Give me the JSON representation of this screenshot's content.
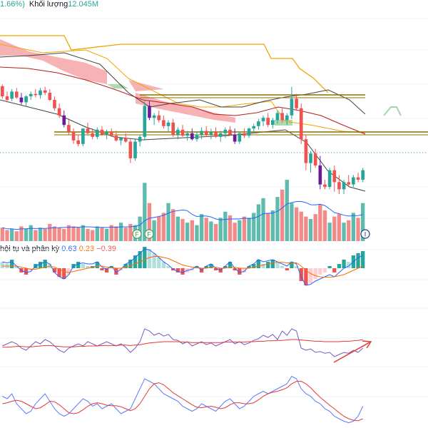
{
  "header": {
    "change_text": "1.66%)",
    "volume_label": "Khối lượng",
    "volume_value": "12.045M"
  },
  "macd_panel": {
    "title": "hội tụ và phân kỳ",
    "values": [
      "0.63",
      "0.23",
      "−0.39"
    ]
  },
  "markers": {
    "f1": "F",
    "f2": "F",
    "i": "I"
  },
  "colors": {
    "up": "#26a69a",
    "down": "#ef5350",
    "volume_up": "#5dbcae",
    "volume_down": "#f18a88",
    "kumo": "#f6a5a8",
    "kumo_green": "#a5d6a7",
    "macd_line": "#2962ff",
    "signal": "#ff6d00",
    "rsi": "#7e57c2",
    "stoch_blue": "#5b7bff",
    "stoch_red": "#e53935",
    "lagging": "#f0a500",
    "hline": "#8d6e00"
  },
  "chart_data": [
    {
      "type": "candlestick",
      "title": "",
      "ylim": [
        0,
        1
      ],
      "candles": [
        [
          0.905,
          0.92,
          0.8,
          0.82
        ],
        [
          0.82,
          0.86,
          0.77,
          0.79
        ],
        [
          0.8,
          0.88,
          0.78,
          0.86
        ],
        [
          0.86,
          0.89,
          0.8,
          0.81
        ],
        [
          0.81,
          0.85,
          0.75,
          0.77
        ],
        [
          0.77,
          0.83,
          0.74,
          0.82
        ],
        [
          0.82,
          0.86,
          0.79,
          0.84
        ],
        [
          0.84,
          0.88,
          0.81,
          0.83
        ],
        [
          0.83,
          0.89,
          0.8,
          0.87
        ],
        [
          0.87,
          0.9,
          0.83,
          0.85
        ],
        [
          0.85,
          0.88,
          0.78,
          0.79
        ],
        [
          0.79,
          0.82,
          0.7,
          0.72
        ],
        [
          0.72,
          0.76,
          0.64,
          0.66
        ],
        [
          0.66,
          0.7,
          0.56,
          0.58
        ],
        [
          0.58,
          0.62,
          0.5,
          0.52
        ],
        [
          0.52,
          0.55,
          0.42,
          0.45
        ],
        [
          0.45,
          0.5,
          0.4,
          0.42
        ],
        [
          0.42,
          0.55,
          0.4,
          0.55
        ],
        [
          0.55,
          0.6,
          0.5,
          0.51
        ],
        [
          0.51,
          0.55,
          0.46,
          0.48
        ],
        [
          0.48,
          0.56,
          0.46,
          0.54
        ],
        [
          0.54,
          0.57,
          0.49,
          0.5
        ],
        [
          0.5,
          0.54,
          0.46,
          0.52
        ],
        [
          0.52,
          0.55,
          0.48,
          0.49
        ],
        [
          0.49,
          0.53,
          0.44,
          0.45
        ],
        [
          0.45,
          0.48,
          0.41,
          0.47
        ],
        [
          0.47,
          0.51,
          0.43,
          0.44
        ],
        [
          0.44,
          0.46,
          0.26,
          0.3
        ],
        [
          0.3,
          0.46,
          0.28,
          0.44
        ],
        [
          0.44,
          0.5,
          0.4,
          0.48
        ],
        [
          0.48,
          0.78,
          0.45,
          0.74
        ],
        [
          0.74,
          0.78,
          0.62,
          0.64
        ],
        [
          0.64,
          0.68,
          0.58,
          0.66
        ],
        [
          0.66,
          0.7,
          0.6,
          0.62
        ],
        [
          0.62,
          0.66,
          0.55,
          0.57
        ],
        [
          0.57,
          0.62,
          0.52,
          0.6
        ],
        [
          0.6,
          0.63,
          0.48,
          0.5
        ],
        [
          0.5,
          0.56,
          0.46,
          0.54
        ],
        [
          0.54,
          0.58,
          0.48,
          0.49
        ],
        [
          0.49,
          0.53,
          0.45,
          0.51
        ],
        [
          0.51,
          0.55,
          0.45,
          0.46
        ],
        [
          0.46,
          0.52,
          0.44,
          0.5
        ],
        [
          0.5,
          0.56,
          0.46,
          0.53
        ],
        [
          0.53,
          0.57,
          0.48,
          0.5
        ],
        [
          0.5,
          0.55,
          0.46,
          0.52
        ],
        [
          0.52,
          0.56,
          0.47,
          0.48
        ],
        [
          0.48,
          0.53,
          0.44,
          0.51
        ],
        [
          0.51,
          0.56,
          0.47,
          0.54
        ],
        [
          0.54,
          0.57,
          0.49,
          0.5
        ],
        [
          0.5,
          0.55,
          0.42,
          0.44
        ],
        [
          0.44,
          0.52,
          0.42,
          0.51
        ],
        [
          0.51,
          0.55,
          0.47,
          0.49
        ],
        [
          0.49,
          0.56,
          0.47,
          0.55
        ],
        [
          0.55,
          0.59,
          0.51,
          0.57
        ],
        [
          0.57,
          0.63,
          0.54,
          0.61
        ],
        [
          0.61,
          0.66,
          0.57,
          0.64
        ],
        [
          0.64,
          0.68,
          0.56,
          0.58
        ],
        [
          0.58,
          0.64,
          0.55,
          0.62
        ],
        [
          0.62,
          0.7,
          0.59,
          0.68
        ],
        [
          0.68,
          0.72,
          0.6,
          0.62
        ],
        [
          0.62,
          0.68,
          0.58,
          0.66
        ],
        [
          0.66,
          0.9,
          0.63,
          0.8
        ],
        [
          0.8,
          0.84,
          0.7,
          0.72
        ],
        [
          0.72,
          0.76,
          0.42,
          0.46
        ],
        [
          0.46,
          0.5,
          0.2,
          0.26
        ],
        [
          0.26,
          0.36,
          0.18,
          0.34
        ],
        [
          0.34,
          0.38,
          0.22,
          0.24
        ],
        [
          0.24,
          0.32,
          0.04,
          0.08
        ],
        [
          0.08,
          0.12,
          0.04,
          0.06
        ],
        [
          0.06,
          0.22,
          0.04,
          0.2
        ],
        [
          0.2,
          0.24,
          0.02,
          0.1
        ],
        [
          0.1,
          0.16,
          0.0,
          0.04
        ],
        [
          0.04,
          0.12,
          0.0,
          0.1
        ],
        [
          0.1,
          0.16,
          0.06,
          0.08
        ],
        [
          0.08,
          0.16,
          0.06,
          0.14
        ],
        [
          0.14,
          0.18,
          0.1,
          0.12
        ],
        [
          0.12,
          0.22,
          0.1,
          0.2
        ]
      ],
      "volumes": [
        0.22,
        0.18,
        0.2,
        0.16,
        0.24,
        0.2,
        0.26,
        0.18,
        0.22,
        0.2,
        0.28,
        0.24,
        0.22,
        0.2,
        0.26,
        0.24,
        0.22,
        0.26,
        0.2,
        0.18,
        0.24,
        0.22,
        0.2,
        0.26,
        0.24,
        0.3,
        0.22,
        0.28,
        0.26,
        0.4,
        0.95,
        0.62,
        0.34,
        0.4,
        0.46,
        0.62,
        0.52,
        0.4,
        0.36,
        0.3,
        0.34,
        0.26,
        0.44,
        0.38,
        0.32,
        0.28,
        0.38,
        0.48,
        0.42,
        0.3,
        0.34,
        0.4,
        0.38,
        0.46,
        0.6,
        0.7,
        0.46,
        0.5,
        0.72,
        0.84,
        1.0,
        0.62,
        0.55,
        0.48,
        0.4,
        0.36,
        0.44,
        0.6,
        0.5,
        0.3,
        0.4,
        0.44,
        0.3,
        0.34,
        0.46,
        0.38,
        0.62
      ],
      "macd_hist": [
        0.3,
        0.2,
        0.4,
        0.1,
        -0.2,
        -0.3,
        -0.1,
        0.2,
        0.3,
        0.4,
        0.2,
        -0.2,
        -0.4,
        -0.5,
        -0.3,
        0.2,
        0.3,
        0.2,
        0.1,
        0.1,
        0.3,
        -0.1,
        -0.2,
        0.1,
        -0.3,
        -0.1,
        0.2,
        0.4,
        0.6,
        0.8,
        1.0,
        0.9,
        0.7,
        0.5,
        0.3,
        0.1,
        -0.1,
        -0.2,
        -0.3,
        -0.2,
        -0.1,
        0.1,
        -0.2,
        0.1,
        0.2,
        -0.1,
        -0.2,
        0.1,
        0.3,
        -0.1,
        -0.3,
        -0.2,
        0.1,
        0.2,
        0.4,
        0.2,
        0.3,
        0.4,
        0.3,
        0.1,
        -0.1,
        0.3,
        0.1,
        -0.6,
        -0.8,
        -0.7,
        -0.5,
        -0.3,
        -0.2,
        0.1,
        -0.2,
        0.2,
        0.4,
        0.3,
        0.6,
        0.7,
        0.8
      ],
      "macd_line": [
        0.3,
        0.25,
        0.3,
        0.1,
        -0.1,
        -0.2,
        -0.15,
        0.1,
        0.2,
        0.3,
        0.2,
        -0.2,
        -0.4,
        -0.5,
        -0.3,
        0.1,
        0.2,
        0.25,
        0.2,
        0.2,
        0.3,
        0.05,
        -0.05,
        0.1,
        -0.2,
        -0.05,
        0.2,
        0.3,
        0.5,
        0.7,
        0.9,
        0.85,
        0.7,
        0.5,
        0.3,
        0.15,
        -0.05,
        -0.15,
        -0.2,
        -0.1,
        -0.05,
        0.1,
        -0.1,
        0.1,
        0.2,
        0.0,
        -0.1,
        0.1,
        0.3,
        0.0,
        -0.2,
        -0.15,
        0.1,
        0.2,
        0.4,
        0.3,
        0.35,
        0.4,
        0.3,
        0.2,
        0.1,
        0.3,
        0.2,
        -0.4,
        -0.8,
        -0.75,
        -0.6,
        -0.5,
        -0.4,
        -0.3,
        -0.4,
        -0.2,
        0.0,
        0.1,
        0.3,
        0.5,
        0.6
      ],
      "macd_signal": [
        0.1,
        0.1,
        0.1,
        0.1,
        0.05,
        0.0,
        -0.05,
        -0.05,
        0.0,
        0.05,
        0.1,
        0.05,
        -0.05,
        -0.15,
        -0.2,
        -0.15,
        -0.1,
        -0.05,
        0.0,
        0.05,
        0.1,
        0.1,
        0.05,
        0.05,
        0.0,
        0.0,
        0.05,
        0.1,
        0.2,
        0.3,
        0.4,
        0.5,
        0.55,
        0.55,
        0.5,
        0.45,
        0.35,
        0.25,
        0.15,
        0.1,
        0.05,
        0.05,
        0.0,
        0.0,
        0.05,
        0.05,
        0.0,
        0.0,
        0.05,
        0.05,
        0.0,
        0.0,
        0.0,
        0.05,
        0.1,
        0.15,
        0.2,
        0.25,
        0.28,
        0.28,
        0.25,
        0.25,
        0.25,
        0.1,
        -0.1,
        -0.25,
        -0.35,
        -0.4,
        -0.42,
        -0.42,
        -0.4,
        -0.35,
        -0.3,
        -0.2,
        -0.1,
        0.0,
        0.1
      ],
      "rsi": [
        0.45,
        0.5,
        0.55,
        0.5,
        0.4,
        0.35,
        0.45,
        0.55,
        0.5,
        0.6,
        0.55,
        0.45,
        0.35,
        0.3,
        0.4,
        0.45,
        0.5,
        0.45,
        0.55,
        0.5,
        0.45,
        0.5,
        0.55,
        0.5,
        0.45,
        0.5,
        0.42,
        0.3,
        0.4,
        0.55,
        0.85,
        0.8,
        0.7,
        0.75,
        0.68,
        0.72,
        0.6,
        0.58,
        0.5,
        0.55,
        0.45,
        0.5,
        0.55,
        0.48,
        0.52,
        0.45,
        0.5,
        0.55,
        0.6,
        0.5,
        0.55,
        0.48,
        0.52,
        0.58,
        0.62,
        0.7,
        0.65,
        0.72,
        0.6,
        0.8,
        0.7,
        0.85,
        0.8,
        0.4,
        0.35,
        0.38,
        0.3,
        0.32,
        0.28,
        0.3,
        0.2,
        0.25,
        0.3,
        0.28,
        0.35,
        0.3,
        0.4
      ],
      "rsi_ma": [
        0.42,
        0.42,
        0.43,
        0.44,
        0.44,
        0.43,
        0.43,
        0.44,
        0.45,
        0.46,
        0.46,
        0.45,
        0.44,
        0.43,
        0.43,
        0.43,
        0.44,
        0.44,
        0.45,
        0.45,
        0.45,
        0.46,
        0.46,
        0.46,
        0.46,
        0.47,
        0.47,
        0.46,
        0.47,
        0.48,
        0.5,
        0.52,
        0.53,
        0.54,
        0.55,
        0.55,
        0.55,
        0.55,
        0.54,
        0.54,
        0.53,
        0.53,
        0.53,
        0.53,
        0.53,
        0.53,
        0.53,
        0.54,
        0.54,
        0.54,
        0.54,
        0.54,
        0.55,
        0.55,
        0.56,
        0.56,
        0.57,
        0.57,
        0.58,
        0.58,
        0.59,
        0.6,
        0.6,
        0.59,
        0.58,
        0.57,
        0.56,
        0.56,
        0.55,
        0.55,
        0.55,
        0.55,
        0.56,
        0.56,
        0.57,
        0.58,
        0.6
      ],
      "stoch_k": [
        0.55,
        0.5,
        0.6,
        0.4,
        0.3,
        0.2,
        0.25,
        0.4,
        0.5,
        0.6,
        0.45,
        0.3,
        0.2,
        0.15,
        0.2,
        0.3,
        0.4,
        0.5,
        0.45,
        0.35,
        0.4,
        0.3,
        0.35,
        0.4,
        0.3,
        0.2,
        0.25,
        0.3,
        0.5,
        0.7,
        0.9,
        0.85,
        0.8,
        0.7,
        0.6,
        0.55,
        0.5,
        0.45,
        0.35,
        0.3,
        0.25,
        0.3,
        0.4,
        0.35,
        0.3,
        0.25,
        0.35,
        0.45,
        0.5,
        0.4,
        0.3,
        0.35,
        0.45,
        0.55,
        0.6,
        0.65,
        0.6,
        0.65,
        0.7,
        0.75,
        0.8,
        0.95,
        0.9,
        0.7,
        0.6,
        0.55,
        0.45,
        0.4,
        0.3,
        0.25,
        0.15,
        0.1,
        0.05,
        0.02,
        0.05,
        0.15,
        0.35
      ],
      "stoch_d": [
        0.4,
        0.42,
        0.45,
        0.47,
        0.45,
        0.4,
        0.35,
        0.3,
        0.32,
        0.38,
        0.45,
        0.44,
        0.38,
        0.3,
        0.22,
        0.2,
        0.22,
        0.28,
        0.35,
        0.4,
        0.42,
        0.4,
        0.37,
        0.36,
        0.36,
        0.34,
        0.3,
        0.26,
        0.3,
        0.4,
        0.55,
        0.7,
        0.8,
        0.82,
        0.78,
        0.7,
        0.62,
        0.56,
        0.5,
        0.44,
        0.38,
        0.33,
        0.32,
        0.34,
        0.35,
        0.33,
        0.3,
        0.32,
        0.38,
        0.42,
        0.42,
        0.4,
        0.4,
        0.42,
        0.48,
        0.55,
        0.6,
        0.63,
        0.65,
        0.68,
        0.72,
        0.8,
        0.85,
        0.85,
        0.8,
        0.72,
        0.62,
        0.53,
        0.45,
        0.37,
        0.3,
        0.22,
        0.15,
        0.1,
        0.07,
        0.06,
        0.1
      ]
    }
  ]
}
